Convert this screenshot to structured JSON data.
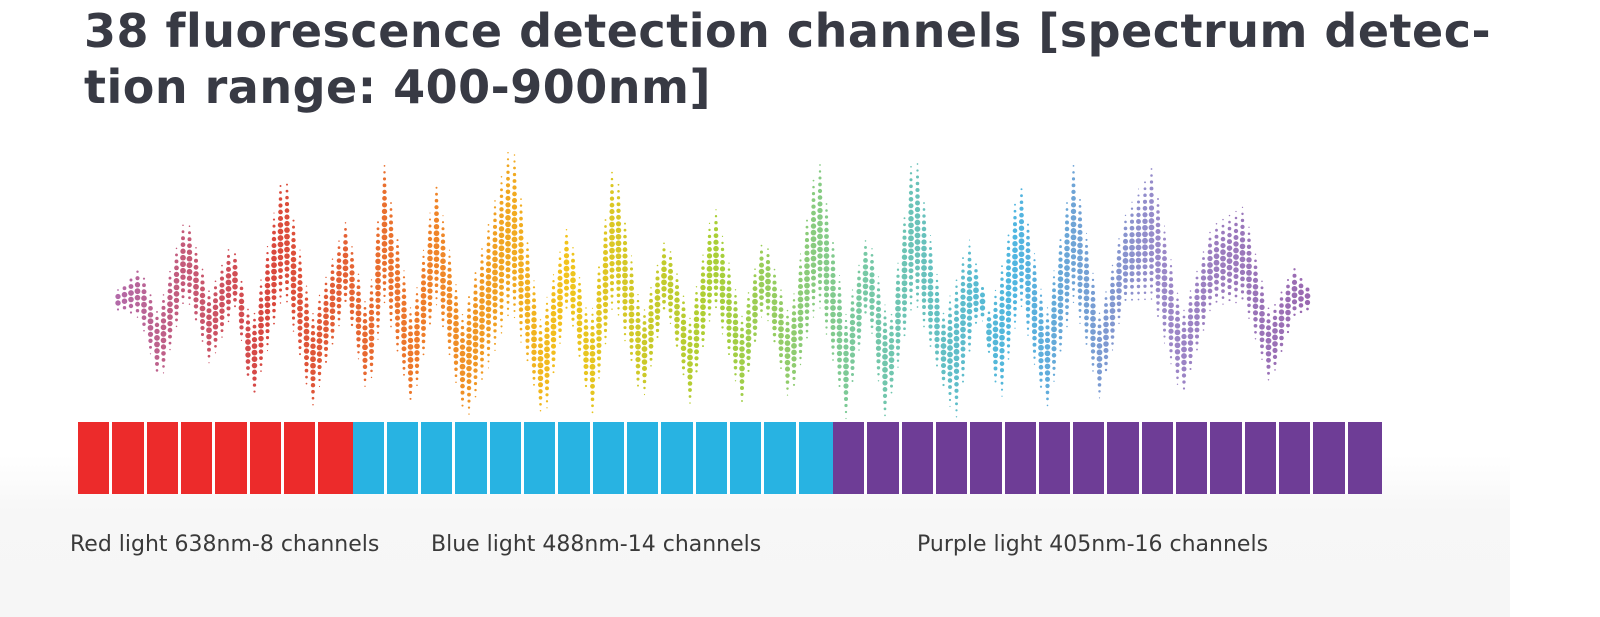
{
  "title": {
    "line1": "38 fluorescence detection channels [spectrum detec-",
    "line2": "tion range: 400-900nm]"
  },
  "channel_groups": [
    {
      "label": "Red light 638nm-8 channels",
      "channels": 8,
      "color": "#ec2b2b"
    },
    {
      "label": "Blue light 488nm-14 channels",
      "channels": 14,
      "color": "#28b3e2"
    },
    {
      "label": "Purple light 405nm-16 channels",
      "channels": 16,
      "color": "#6e3d96"
    }
  ],
  "wave_colors": [
    "#b36aa8",
    "#d9463e",
    "#ee7a2a",
    "#f2c31c",
    "#a9cf35",
    "#77c9a4",
    "#4fb6e0",
    "#9b88c8",
    "#9a68b0"
  ]
}
